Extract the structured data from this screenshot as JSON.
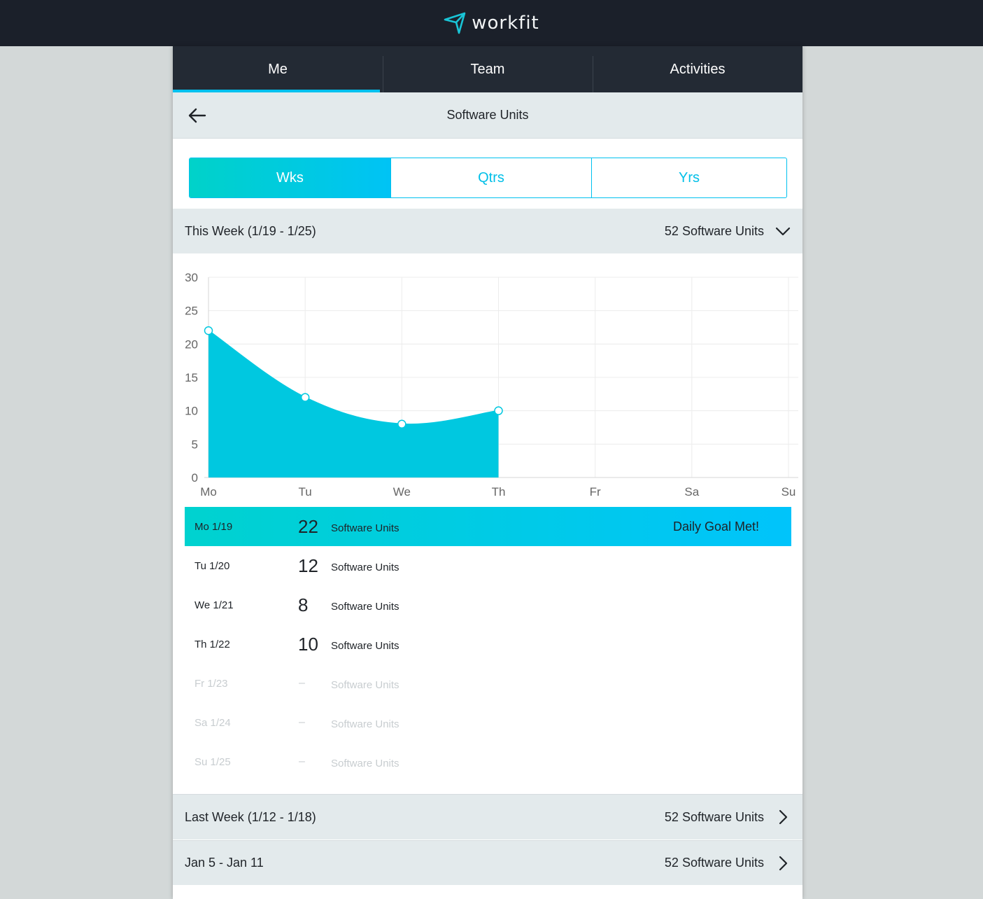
{
  "app": {
    "logo_text": "workfit"
  },
  "nav": {
    "tabs": [
      {
        "label": "Me"
      },
      {
        "label": "Team"
      },
      {
        "label": "Activities"
      }
    ]
  },
  "subheader": {
    "title": "Software Units"
  },
  "segments": [
    {
      "label": "Wks"
    },
    {
      "label": "Qtrs"
    },
    {
      "label": "Yrs"
    }
  ],
  "this_week": {
    "label": "This Week (1/19 - 1/25)",
    "total": "52 Software Units"
  },
  "chart_data": {
    "type": "area",
    "categories": [
      "Mo",
      "Tu",
      "We",
      "Th",
      "Fr",
      "Sa",
      "Su"
    ],
    "values": [
      22,
      12,
      8,
      10,
      null,
      null,
      null
    ],
    "ylim": [
      0,
      30
    ],
    "yticks": [
      0,
      5,
      10,
      15,
      20,
      25,
      30
    ],
    "grid": true,
    "color": "#00c8e0"
  },
  "days": [
    {
      "label": "Mo 1/19",
      "value": "22",
      "unit": "Software Units",
      "goal": "Daily Goal Met!"
    },
    {
      "label": "Tu 1/20",
      "value": "12",
      "unit": "Software Units"
    },
    {
      "label": "We 1/21",
      "value": "8",
      "unit": "Software Units"
    },
    {
      "label": "Th 1/22",
      "value": "10",
      "unit": "Software Units"
    },
    {
      "label": "Fr 1/23",
      "value": "–",
      "unit": "Software Units"
    },
    {
      "label": "Sa 1/24",
      "value": "–",
      "unit": "Software Units"
    },
    {
      "label": "Su 1/25",
      "value": "–",
      "unit": "Software Units"
    }
  ],
  "past_weeks": [
    {
      "label": "Last Week (1/12 - 1/18)",
      "total": "52 Software Units"
    },
    {
      "label": "Jan 5 - Jan 11",
      "total": "52 Software Units"
    }
  ]
}
